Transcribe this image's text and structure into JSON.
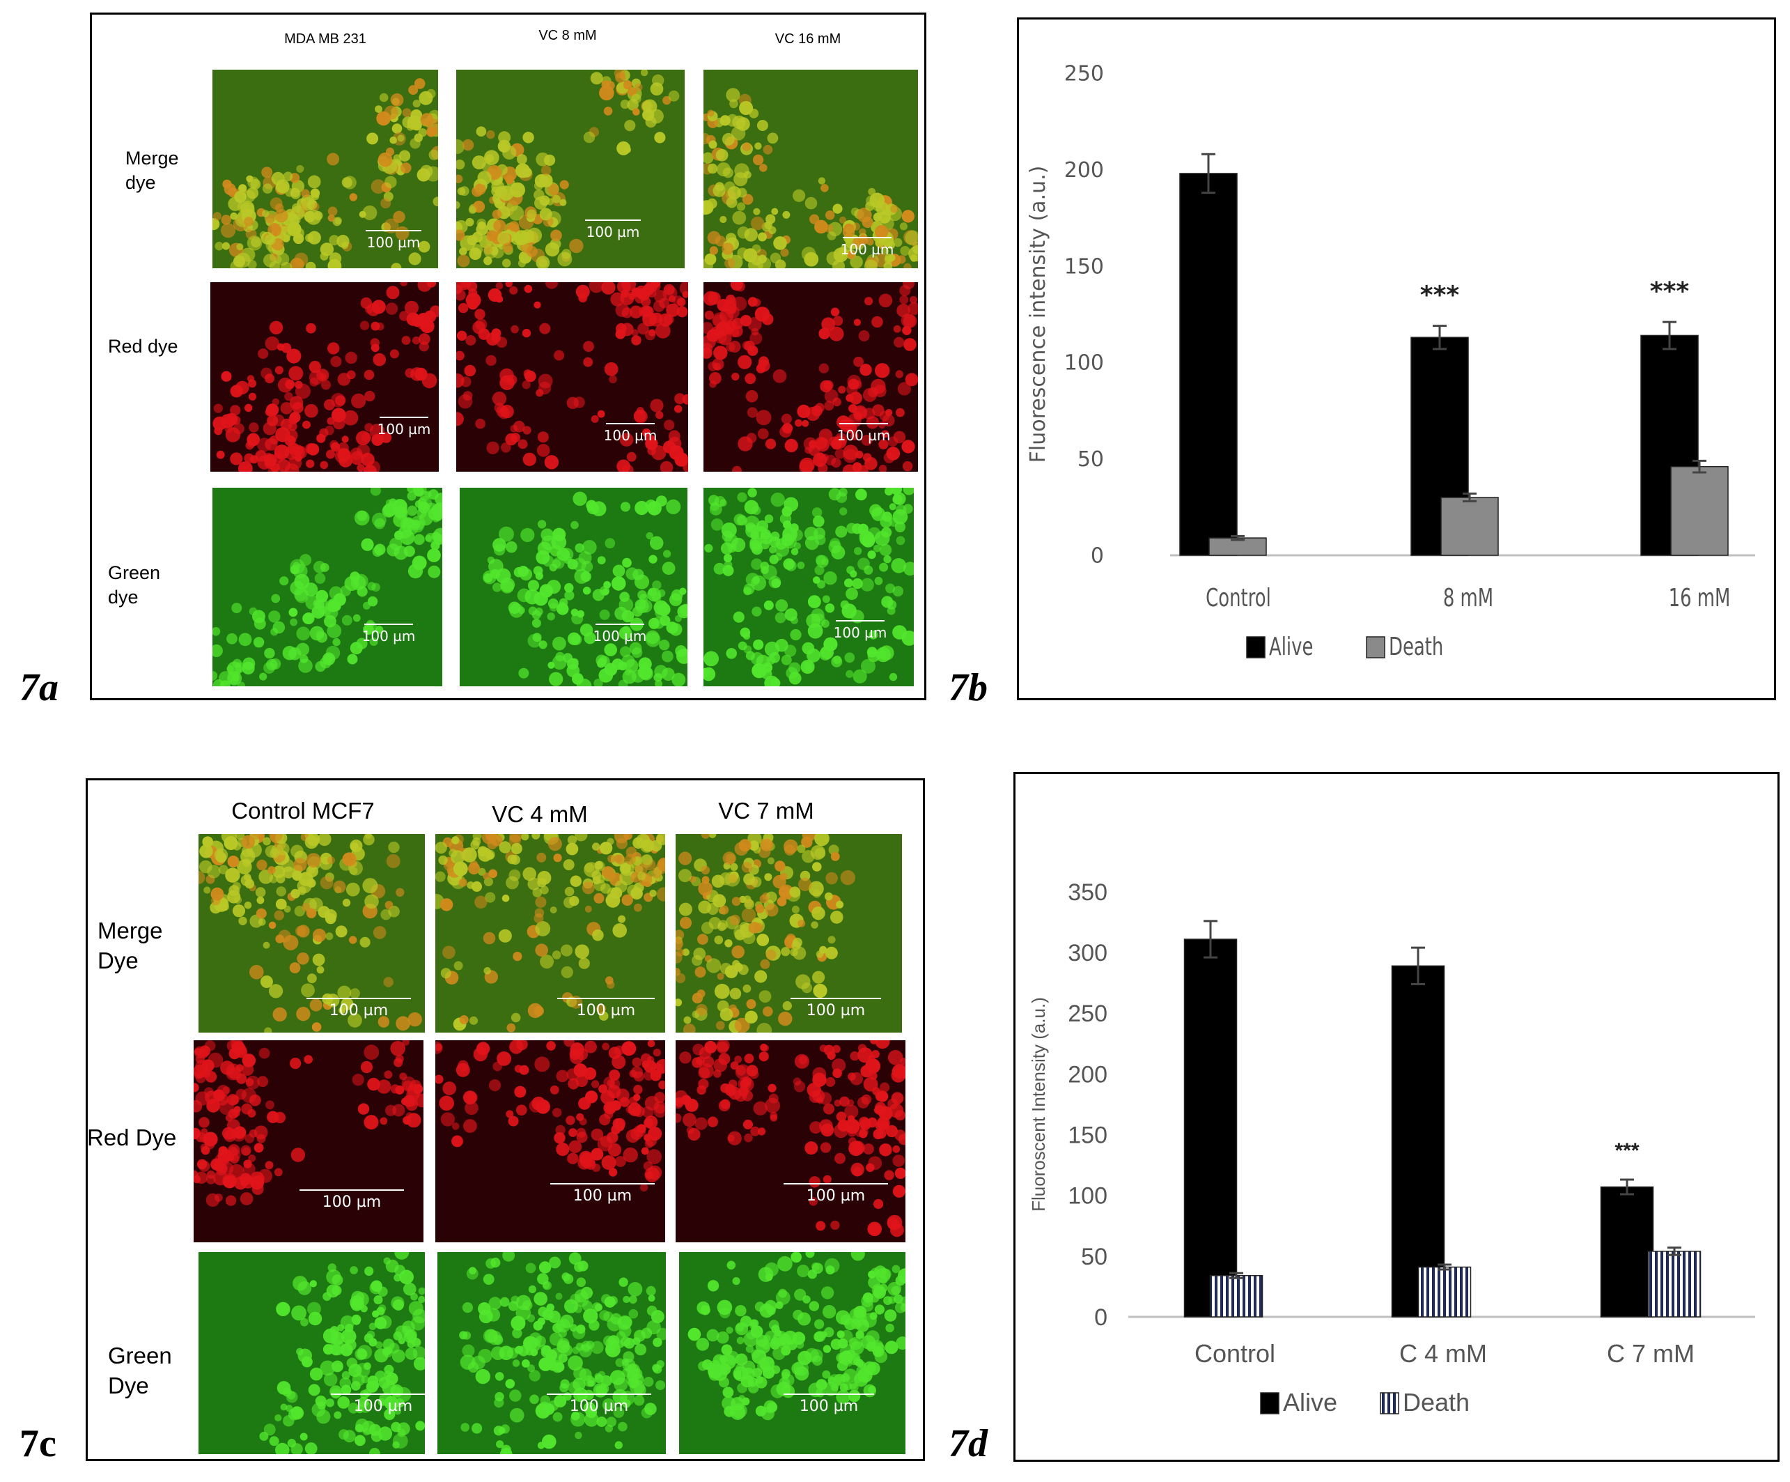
{
  "panels": {
    "a": {
      "label": "7a",
      "columns": [
        "MDA MB 231",
        "VC 8 mM",
        "VC 16 mM"
      ],
      "rows": [
        "Merge dye",
        "Red dye",
        "Green dye"
      ],
      "scale_text": "100 µm"
    },
    "c": {
      "label": "7c",
      "columns": [
        "Control MCF7",
        "VC 4 mM",
        "VC 7 mM"
      ],
      "rows": [
        "Merge Dye",
        "Red Dye",
        "Green Dye"
      ],
      "scale_text": "100 µm"
    },
    "b": {
      "label": "7b"
    },
    "d": {
      "label": "7d"
    }
  },
  "colors": {
    "merge_bg": "#3a6e10",
    "merge_cell": "#b9c826",
    "red_bg": "#2a0206",
    "red_cell": "#e0141a",
    "green_bg": "#1d7a12",
    "green_cell": "#52e62d",
    "alive": "#000000",
    "death_b": "#8a8a8a"
  },
  "chart_data": [
    {
      "type": "bar",
      "title": "",
      "categories": [
        "Control",
        "8 mM",
        "16 mM"
      ],
      "series": [
        {
          "name": "Alive",
          "values": [
            198,
            113,
            114
          ],
          "errors": [
            10,
            6,
            7
          ]
        },
        {
          "name": "Death",
          "values": [
            9,
            30,
            46
          ],
          "errors": [
            1,
            2,
            3
          ]
        }
      ],
      "annotations": [
        "",
        "***",
        "***"
      ],
      "xlabel": "",
      "ylabel": "Fluorescence intensity (a.u.)",
      "ylim": [
        0,
        250
      ],
      "yticks": [
        "0",
        "50",
        "100",
        "150",
        "200",
        "250"
      ],
      "grid": false,
      "legend": "bottom"
    },
    {
      "type": "bar",
      "title": "",
      "categories": [
        "Control",
        "C 4 mM",
        "C 7 mM"
      ],
      "series": [
        {
          "name": "Alive",
          "values": [
            311,
            289,
            107
          ],
          "errors": [
            15,
            15,
            6
          ]
        },
        {
          "name": "Death",
          "values": [
            34,
            41,
            54
          ],
          "errors": [
            2,
            2,
            3
          ]
        }
      ],
      "annotations": [
        "",
        "",
        "***"
      ],
      "xlabel": "",
      "ylabel": "Fluoroscent Intensity (a.u.)",
      "ylim": [
        0,
        350
      ],
      "yticks": [
        "0",
        "50",
        "100",
        "150",
        "200",
        "250",
        "300",
        "350"
      ],
      "grid": false,
      "legend": "bottom"
    }
  ]
}
